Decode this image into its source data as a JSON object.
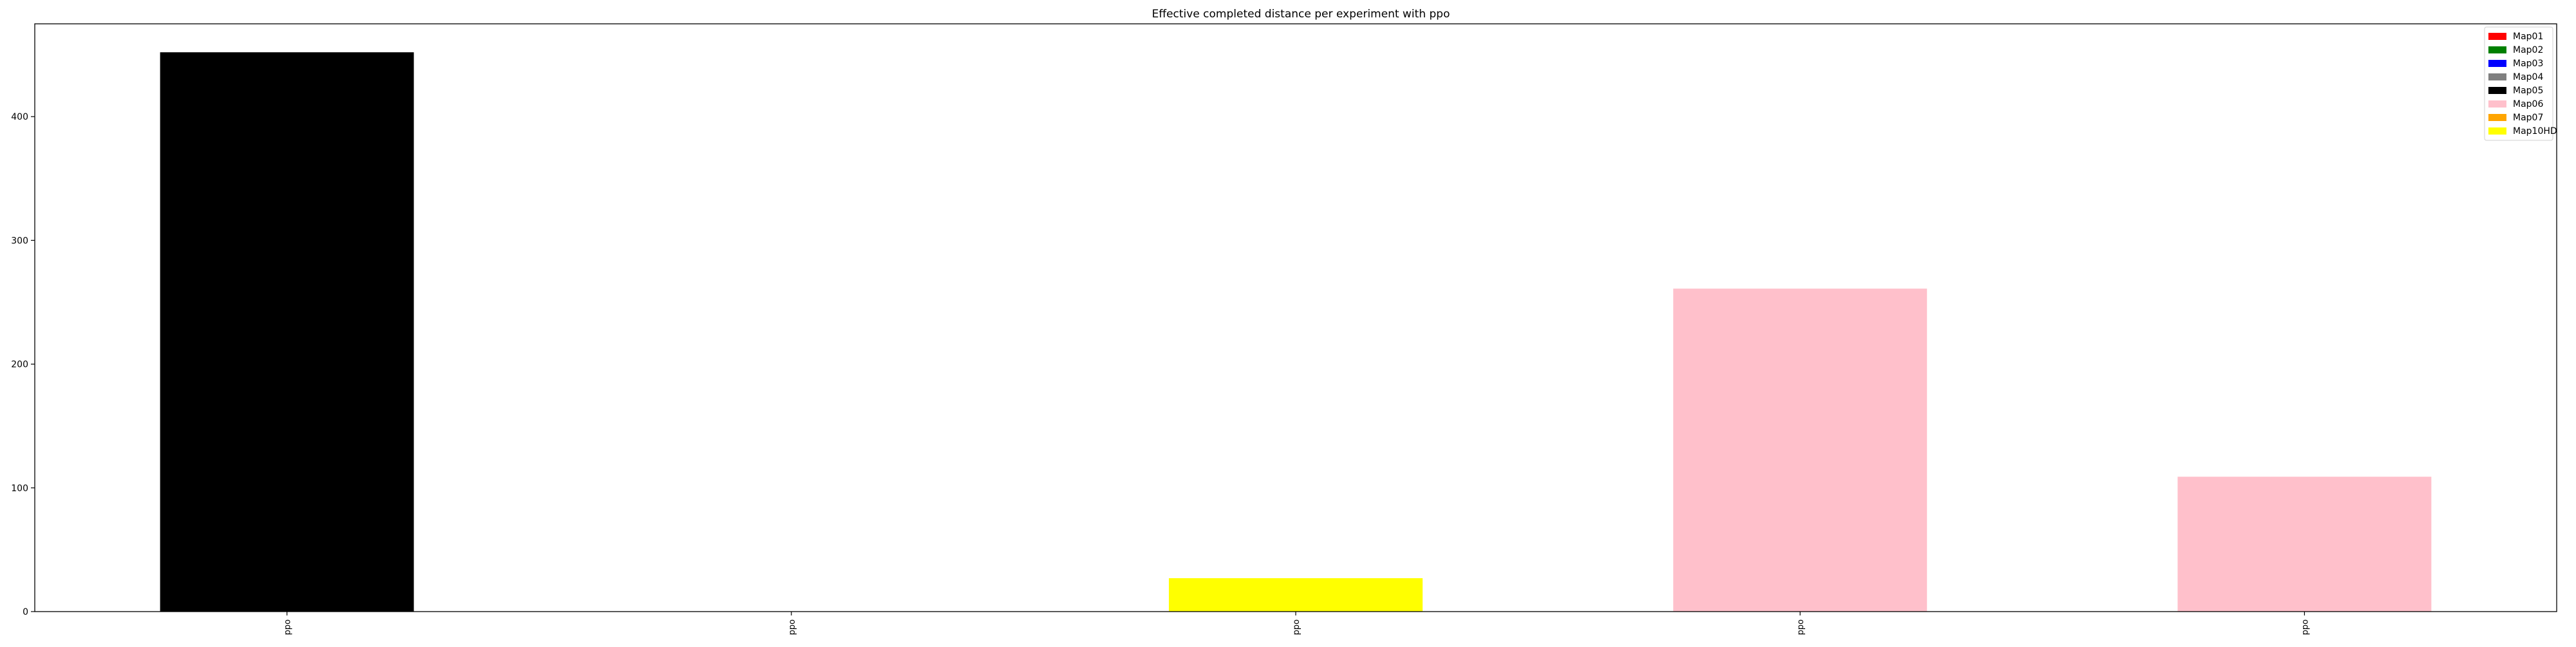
{
  "chart_data": {
    "type": "bar",
    "title": "Effective completed distance per experiment with ppo",
    "xlabel": "",
    "ylabel": "",
    "ylim": [
      0,
      475
    ],
    "yticks": [
      0,
      100,
      200,
      300,
      400
    ],
    "grid": false,
    "legend_placement": "top-right",
    "categories": [
      "ppo",
      "ppo",
      "ppo",
      "ppo",
      "ppo"
    ],
    "bars": [
      {
        "category_index": 0,
        "value": 452,
        "color_key": "Map05"
      },
      {
        "category_index": 1,
        "value": 0,
        "color_key": "Map01"
      },
      {
        "category_index": 2,
        "value": 27,
        "color_key": "Map10HD"
      },
      {
        "category_index": 3,
        "value": 261,
        "color_key": "Map06"
      },
      {
        "category_index": 4,
        "value": 109,
        "color_key": "Map06"
      }
    ],
    "legend": [
      {
        "label": "Map01",
        "color": "#ff0000"
      },
      {
        "label": "Map02",
        "color": "#008000"
      },
      {
        "label": "Map03",
        "color": "#0000ff"
      },
      {
        "label": "Map04",
        "color": "#808080"
      },
      {
        "label": "Map05",
        "color": "#000000"
      },
      {
        "label": "Map06",
        "color": "#ffc0cb"
      },
      {
        "label": "Map07",
        "color": "#ffa500"
      },
      {
        "label": "Map10HD",
        "color": "#ffff00"
      }
    ]
  }
}
